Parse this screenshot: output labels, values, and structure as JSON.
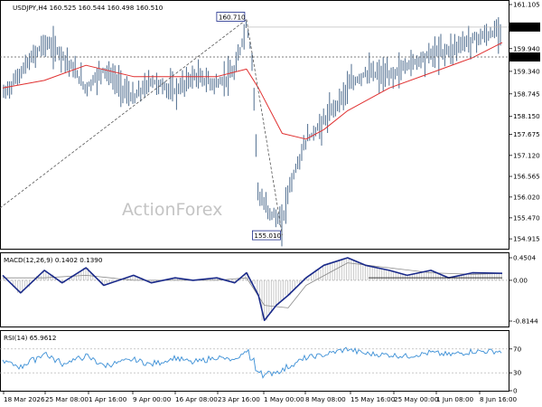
{
  "header": {
    "symbol_info": "USDJPY,H4  160.525 160.544 160.498 160.510"
  },
  "watermark": "ActionForex",
  "colors": {
    "price_bars": "#4f6d8f",
    "moving_average": "#e03030",
    "macd_line": "#1a2a8a",
    "macd_signal": "#8a8a8a",
    "rsi_line": "#3b8fd6",
    "guide_lines": "#555555",
    "label_box_border": "#1a2a8a"
  },
  "chart_data": [
    {
      "type": "line",
      "panel": "price",
      "ylim": [
        154.75,
        161.105
      ],
      "y_ticks": [
        {
          "value": 161.105,
          "label": "161.105"
        },
        {
          "value": 159.94,
          "label": "159.940"
        },
        {
          "value": 159.34,
          "label": "159.340"
        },
        {
          "value": 158.745,
          "label": "158.745"
        },
        {
          "value": 158.15,
          "label": "158.150"
        },
        {
          "value": 157.675,
          "label": "157.675"
        },
        {
          "value": 157.12,
          "label": "157.120"
        },
        {
          "value": 156.565,
          "label": "156.565"
        },
        {
          "value": 156.02,
          "label": "156.020"
        },
        {
          "value": 155.47,
          "label": "155.470"
        },
        {
          "value": 154.915,
          "label": "154.915"
        }
      ],
      "current_price": {
        "value": 160.51,
        "label": "160.510"
      },
      "level_line": {
        "value": 159.72,
        "label": "159.720"
      },
      "annotations": [
        {
          "text": "160.710",
          "x": "28 Apr",
          "value": 160.71
        },
        {
          "text": "155.010",
          "x": "4 May",
          "value": 155.01
        }
      ],
      "x_ticks": [
        "18 Mar 2026",
        "25 Mar 08:00",
        "1 Apr 16:00",
        "9 Apr 00:00",
        "16 Apr 08:00",
        "23 Apr 16:00",
        "1 May 00:00",
        "8 May 08:00",
        "15 May 16:00",
        "25 May 00:00",
        "1 Jun 08:00",
        "8 Jun 16:00"
      ],
      "series": [
        {
          "kind": "close",
          "x": [
            "18 Mar",
            "21 Mar",
            "25 Mar",
            "28 Mar",
            "1 Apr",
            "4 Apr",
            "9 Apr",
            "12 Apr",
            "16 Apr",
            "19 Apr",
            "23 Apr",
            "26 Apr",
            "28 Apr",
            "29 Apr",
            "30 Apr",
            "1 May",
            "4 May",
            "5 May",
            "8 May",
            "11 May",
            "15 May",
            "18 May",
            "22 May",
            "25 May",
            "29 May",
            "1 Jun",
            "5 Jun",
            "8 Jun",
            "10 Jun"
          ],
          "values": [
            158.7,
            159.3,
            160.1,
            159.8,
            158.9,
            159.4,
            158.6,
            159.1,
            158.8,
            159.2,
            159.0,
            159.3,
            160.6,
            159.6,
            156.0,
            155.8,
            155.3,
            156.2,
            157.5,
            158.0,
            158.9,
            159.3,
            159.2,
            159.5,
            159.8,
            159.9,
            160.2,
            160.3,
            160.5
          ]
        },
        {
          "kind": "moving_average",
          "x": [
            "18 Mar",
            "25 Mar",
            "1 Apr",
            "9 Apr",
            "16 Apr",
            "23 Apr",
            "28 Apr",
            "30 Apr",
            "4 May",
            "8 May",
            "11 May",
            "15 May",
            "22 May",
            "29 May",
            "5 Jun",
            "10 Jun"
          ],
          "values": [
            158.9,
            159.1,
            159.5,
            159.2,
            159.2,
            159.2,
            159.4,
            158.9,
            157.7,
            157.55,
            157.8,
            158.3,
            158.9,
            159.3,
            159.7,
            160.1
          ]
        }
      ]
    },
    {
      "type": "line",
      "panel": "macd",
      "label": "MACD(12,26,9) 0.1402 0.1390",
      "ylim": [
        -0.8144,
        0.4504
      ],
      "y_ticks": [
        {
          "value": 0.4504,
          "label": "0.4504"
        },
        {
          "value": 0.0,
          "label": "0.00"
        },
        {
          "value": -0.8144,
          "label": "-0.8144"
        }
      ],
      "series": [
        {
          "kind": "macd",
          "x": [
            "18 Mar",
            "21 Mar",
            "25 Mar",
            "28 Mar",
            "1 Apr",
            "4 Apr",
            "9 Apr",
            "12 Apr",
            "16 Apr",
            "19 Apr",
            "23 Apr",
            "26 Apr",
            "28 Apr",
            "30 Apr",
            "1 May",
            "3 May",
            "5 May",
            "8 May",
            "11 May",
            "15 May",
            "18 May",
            "22 May",
            "25 May",
            "29 May",
            "1 Jun",
            "5 Jun",
            "10 Jun"
          ],
          "values": [
            0.1,
            -0.25,
            0.2,
            -0.05,
            0.25,
            -0.1,
            0.1,
            -0.05,
            0.05,
            0.0,
            0.05,
            -0.05,
            0.15,
            -0.3,
            -0.8,
            -0.5,
            -0.3,
            0.05,
            0.3,
            0.45,
            0.3,
            0.2,
            0.1,
            0.2,
            0.05,
            0.15,
            0.14
          ]
        },
        {
          "kind": "signal",
          "x": [
            "18 Mar",
            "25 Mar",
            "1 Apr",
            "9 Apr",
            "16 Apr",
            "23 Apr",
            "28 Apr",
            "1 May",
            "5 May",
            "8 May",
            "15 May",
            "22 May",
            "29 May",
            "5 Jun",
            "10 Jun"
          ],
          "values": [
            0.05,
            0.05,
            0.1,
            0.0,
            0.0,
            0.0,
            0.05,
            -0.5,
            -0.55,
            -0.1,
            0.35,
            0.25,
            0.15,
            0.12,
            0.14
          ]
        }
      ]
    },
    {
      "type": "line",
      "panel": "rsi",
      "label": "RSI(14) 65.9612",
      "ylim": [
        0,
        100
      ],
      "y_ticks": [
        {
          "value": 70,
          "label": "70"
        },
        {
          "value": 30,
          "label": "30"
        },
        {
          "value": 0,
          "label": "0"
        }
      ],
      "series": [
        {
          "kind": "rsi",
          "x": [
            "18 Mar",
            "21 Mar",
            "25 Mar",
            "28 Mar",
            "1 Apr",
            "4 Apr",
            "9 Apr",
            "12 Apr",
            "16 Apr",
            "19 Apr",
            "23 Apr",
            "26 Apr",
            "28 Apr",
            "30 Apr",
            "1 May",
            "4 May",
            "6 May",
            "8 May",
            "11 May",
            "15 May",
            "18 May",
            "22 May",
            "25 May",
            "29 May",
            "1 Jun",
            "5 Jun",
            "10 Jun"
          ],
          "values": [
            50,
            40,
            63,
            45,
            58,
            42,
            52,
            44,
            55,
            47,
            56,
            50,
            68,
            34,
            26,
            35,
            45,
            55,
            60,
            70,
            62,
            60,
            58,
            64,
            60,
            66,
            66
          ]
        }
      ]
    }
  ]
}
